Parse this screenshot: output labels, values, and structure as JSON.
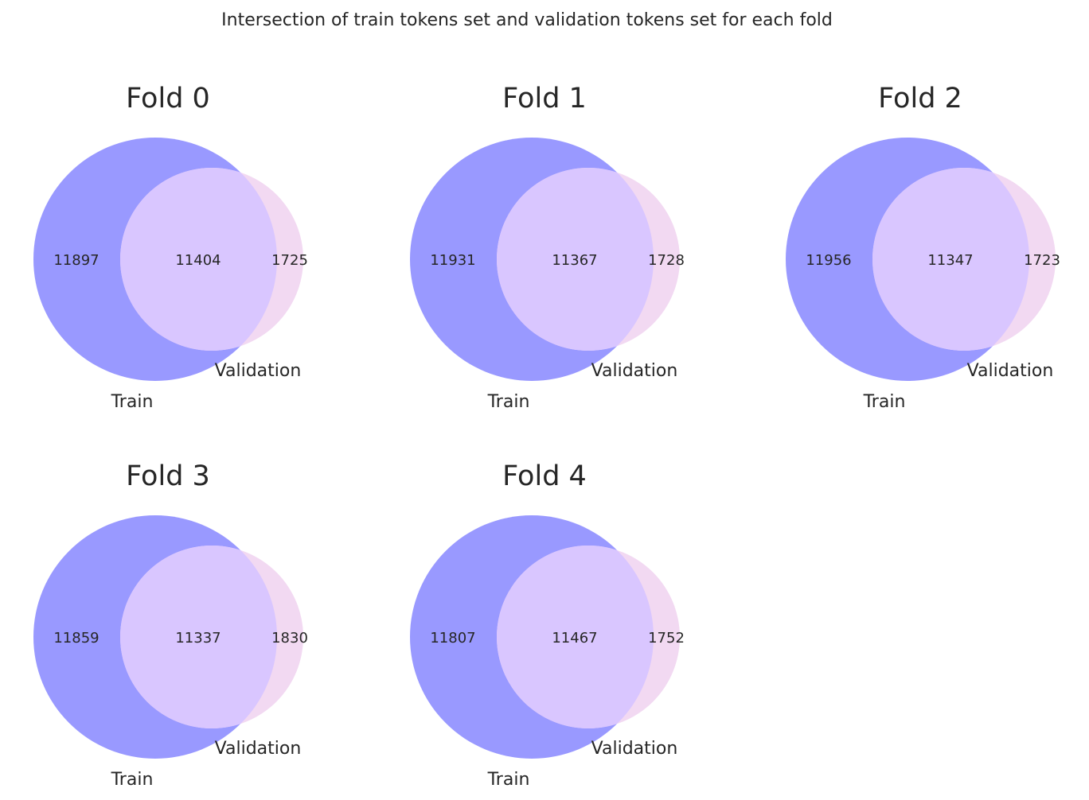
{
  "chart_data": {
    "type": "venn",
    "title": "Intersection of train tokens set and validation tokens set for each fold",
    "colors": {
      "train": "#9999ff",
      "validation": "#f2d9f2",
      "intersection": "#d9c6ff"
    },
    "folds": [
      {
        "title": "Fold 0",
        "sets": [
          "Train",
          "Validation"
        ],
        "train_only": 11897,
        "intersection": 11404,
        "validation_only": 1725
      },
      {
        "title": "Fold 1",
        "sets": [
          "Train",
          "Validation"
        ],
        "train_only": 11931,
        "intersection": 11367,
        "validation_only": 1728
      },
      {
        "title": "Fold 2",
        "sets": [
          "Train",
          "Validation"
        ],
        "train_only": 11956,
        "intersection": 11347,
        "validation_only": 1723
      },
      {
        "title": "Fold 3",
        "sets": [
          "Train",
          "Validation"
        ],
        "train_only": 11859,
        "intersection": 11337,
        "validation_only": 1830
      },
      {
        "title": "Fold 4",
        "sets": [
          "Train",
          "Validation"
        ],
        "train_only": 11807,
        "intersection": 11467,
        "validation_only": 1752
      }
    ]
  }
}
